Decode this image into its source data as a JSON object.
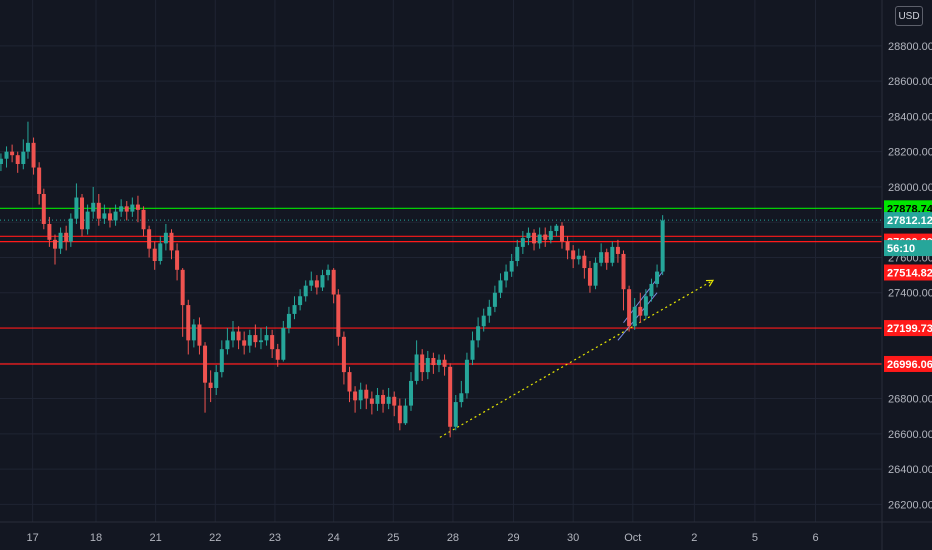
{
  "chart_data": {
    "type": "candlestick",
    "currency": "USD",
    "colors": {
      "background": "#131722",
      "up": "#26a69a",
      "down": "#ef5350",
      "grid": "#1f2433",
      "green_line": "#00e600",
      "red_line": "#ff1a1a",
      "trendline": "#e6e600",
      "channel": "#7b8ce0",
      "current_price": "#26a69a"
    },
    "y_axis": {
      "min": 26100,
      "max": 29060,
      "ticks": [
        "26200.00",
        "26400.00",
        "26600.00",
        "26800.00",
        "27000.00",
        "27200.00",
        "27400.00",
        "27600.00",
        "27800.00",
        "28000.00",
        "28200.00",
        "28400.00",
        "28600.00",
        "28800.00"
      ]
    },
    "x_axis": {
      "labels": [
        {
          "text": "17",
          "x": 0.035
        },
        {
          "text": "18",
          "x": 0.103
        },
        {
          "text": "21",
          "x": 0.167
        },
        {
          "text": "22",
          "x": 0.231
        },
        {
          "text": "23",
          "x": 0.295
        },
        {
          "text": "24",
          "x": 0.358
        },
        {
          "text": "25",
          "x": 0.422
        },
        {
          "text": "28",
          "x": 0.486
        },
        {
          "text": "29",
          "x": 0.551
        },
        {
          "text": "30",
          "x": 0.615
        },
        {
          "text": "Oct",
          "x": 0.679
        },
        {
          "text": "2",
          "x": 0.745
        },
        {
          "text": "5",
          "x": 0.81
        },
        {
          "text": "6",
          "x": 0.875
        }
      ]
    },
    "horizontal_lines": [
      {
        "price": 27878.74,
        "label": "27878.74",
        "color": "#00e600",
        "tag_bg": "#00e600",
        "tag_fg": "#000000"
      },
      {
        "price": 27720,
        "label": "",
        "color": "#ff1a1a"
      },
      {
        "price": 27690.0,
        "label": "27690.00",
        "color": "#ff1a1a",
        "tag_bg": "#ff1a1a",
        "tag_fg": "#ffffff"
      },
      {
        "price": 27199.73,
        "label": "27199.73",
        "color": "#ff1a1a",
        "tag_bg": "#ff1a1a",
        "tag_fg": "#ffffff"
      },
      {
        "price": 26996.06,
        "label": "26996.06",
        "color": "#ff1a1a",
        "tag_bg": "#ff1a1a",
        "tag_fg": "#ffffff"
      }
    ],
    "price_tags": [
      {
        "price": 27812.12,
        "label": "27812.12",
        "bg": "#26a69a",
        "fg": "#ffffff"
      },
      {
        "price": 27514.82,
        "label": "27514.82",
        "bg": "#ff1a1a",
        "fg": "#ffffff"
      }
    ],
    "countdown": "56:10",
    "trendline": {
      "x0": 0.472,
      "y0": 26580,
      "x1": 0.765,
      "y1": 27470
    },
    "candles": [
      [
        0.001,
        28130,
        28160,
        28090,
        28190
      ],
      [
        0.007,
        28160,
        28200,
        28110,
        28230
      ],
      [
        0.013,
        28200,
        28180,
        28140,
        28240
      ],
      [
        0.019,
        28180,
        28130,
        28080,
        28200
      ],
      [
        0.025,
        28130,
        28200,
        28100,
        28270
      ],
      [
        0.03,
        28200,
        28250,
        28160,
        28370
      ],
      [
        0.036,
        28250,
        28110,
        28070,
        28280
      ],
      [
        0.042,
        28110,
        27960,
        27900,
        28140
      ],
      [
        0.047,
        27960,
        27790,
        27760,
        27990
      ],
      [
        0.053,
        27790,
        27700,
        27660,
        27830
      ],
      [
        0.059,
        27700,
        27650,
        27560,
        27730
      ],
      [
        0.065,
        27650,
        27740,
        27620,
        27770
      ],
      [
        0.071,
        27740,
        27690,
        27640,
        27780
      ],
      [
        0.076,
        27690,
        27820,
        27660,
        27850
      ],
      [
        0.082,
        27820,
        27940,
        27790,
        28020
      ],
      [
        0.088,
        27940,
        27760,
        27720,
        27960
      ],
      [
        0.094,
        27760,
        27860,
        27730,
        27900
      ],
      [
        0.1,
        27860,
        27910,
        27820,
        28000
      ],
      [
        0.106,
        27910,
        27820,
        27780,
        27960
      ],
      [
        0.112,
        27820,
        27850,
        27790,
        27900
      ],
      [
        0.118,
        27850,
        27810,
        27770,
        27880
      ],
      [
        0.124,
        27810,
        27860,
        27780,
        27900
      ],
      [
        0.13,
        27860,
        27890,
        27830,
        27930
      ],
      [
        0.136,
        27890,
        27860,
        27810,
        27920
      ],
      [
        0.142,
        27860,
        27900,
        27830,
        27940
      ],
      [
        0.148,
        27900,
        27870,
        27800,
        27950
      ],
      [
        0.154,
        27870,
        27760,
        27720,
        27890
      ],
      [
        0.16,
        27760,
        27650,
        27600,
        27780
      ],
      [
        0.166,
        27650,
        27580,
        27530,
        27690
      ],
      [
        0.172,
        27580,
        27680,
        27560,
        27720
      ],
      [
        0.178,
        27680,
        27740,
        27640,
        27790
      ],
      [
        0.184,
        27740,
        27640,
        27590,
        27760
      ],
      [
        0.19,
        27640,
        27530,
        27470,
        27680
      ],
      [
        0.196,
        27530,
        27330,
        27150,
        27540
      ],
      [
        0.202,
        27330,
        27130,
        27050,
        27360
      ],
      [
        0.208,
        27130,
        27220,
        27090,
        27250
      ],
      [
        0.214,
        27220,
        27100,
        27050,
        27260
      ],
      [
        0.22,
        27100,
        26890,
        26720,
        27120
      ],
      [
        0.226,
        26890,
        26860,
        26780,
        26960
      ],
      [
        0.232,
        26860,
        26950,
        26820,
        26990
      ],
      [
        0.238,
        26950,
        27080,
        26920,
        27130
      ],
      [
        0.244,
        27080,
        27130,
        27050,
        27200
      ],
      [
        0.25,
        27130,
        27180,
        27090,
        27240
      ],
      [
        0.256,
        27180,
        27130,
        27080,
        27210
      ],
      [
        0.262,
        27130,
        27100,
        27050,
        27180
      ],
      [
        0.268,
        27100,
        27160,
        27060,
        27190
      ],
      [
        0.274,
        27160,
        27120,
        27090,
        27220
      ],
      [
        0.28,
        27120,
        27130,
        27080,
        27200
      ],
      [
        0.286,
        27130,
        27160,
        27100,
        27210
      ],
      [
        0.292,
        27160,
        27080,
        27030,
        27190
      ],
      [
        0.298,
        27080,
        27020,
        26980,
        27110
      ],
      [
        0.304,
        27020,
        27200,
        27010,
        27240
      ],
      [
        0.31,
        27200,
        27280,
        27170,
        27320
      ],
      [
        0.316,
        27280,
        27330,
        27250,
        27380
      ],
      [
        0.322,
        27330,
        27380,
        27300,
        27420
      ],
      [
        0.328,
        27380,
        27440,
        27350,
        27470
      ],
      [
        0.334,
        27440,
        27470,
        27410,
        27520
      ],
      [
        0.34,
        27470,
        27430,
        27390,
        27500
      ],
      [
        0.346,
        27430,
        27500,
        27410,
        27530
      ],
      [
        0.352,
        27500,
        27530,
        27470,
        27560
      ],
      [
        0.358,
        27530,
        27390,
        27340,
        27540
      ],
      [
        0.363,
        27390,
        27150,
        27100,
        27420
      ],
      [
        0.369,
        27150,
        26950,
        26880,
        27180
      ],
      [
        0.375,
        26950,
        26840,
        26780,
        26980
      ],
      [
        0.381,
        26840,
        26790,
        26720,
        26870
      ],
      [
        0.387,
        26790,
        26850,
        26740,
        26890
      ],
      [
        0.393,
        26850,
        26800,
        26740,
        26880
      ],
      [
        0.399,
        26800,
        26770,
        26710,
        26840
      ],
      [
        0.405,
        26770,
        26820,
        26730,
        26860
      ],
      [
        0.411,
        26820,
        26770,
        26720,
        26850
      ],
      [
        0.417,
        26770,
        26810,
        26740,
        26860
      ],
      [
        0.423,
        26810,
        26760,
        26700,
        26840
      ],
      [
        0.429,
        26760,
        26660,
        26620,
        26800
      ],
      [
        0.435,
        26660,
        26760,
        26650,
        26800
      ],
      [
        0.441,
        26760,
        26900,
        26730,
        26950
      ],
      [
        0.447,
        26900,
        27050,
        26880,
        27130
      ],
      [
        0.453,
        27050,
        26950,
        26900,
        27080
      ],
      [
        0.459,
        26950,
        27030,
        26910,
        27070
      ],
      [
        0.465,
        27030,
        26990,
        26940,
        27060
      ],
      [
        0.471,
        26990,
        27020,
        26950,
        27050
      ],
      [
        0.477,
        27020,
        26980,
        26930,
        27050
      ],
      [
        0.483,
        26980,
        26640,
        26580,
        27000
      ],
      [
        0.489,
        26640,
        26780,
        26620,
        26820
      ],
      [
        0.495,
        26780,
        26830,
        26750,
        26900
      ],
      [
        0.501,
        26830,
        27020,
        26800,
        27060
      ],
      [
        0.507,
        27020,
        27130,
        26990,
        27180
      ],
      [
        0.513,
        27130,
        27210,
        27090,
        27260
      ],
      [
        0.519,
        27210,
        27270,
        27180,
        27310
      ],
      [
        0.525,
        27270,
        27320,
        27230,
        27360
      ],
      [
        0.531,
        27320,
        27400,
        27290,
        27440
      ],
      [
        0.537,
        27400,
        27470,
        27370,
        27510
      ],
      [
        0.543,
        27470,
        27520,
        27430,
        27560
      ],
      [
        0.549,
        27520,
        27580,
        27490,
        27620
      ],
      [
        0.555,
        27580,
        27660,
        27550,
        27700
      ],
      [
        0.561,
        27660,
        27710,
        27620,
        27750
      ],
      [
        0.567,
        27710,
        27740,
        27670,
        27770
      ],
      [
        0.573,
        27740,
        27680,
        27640,
        27760
      ],
      [
        0.579,
        27680,
        27730,
        27650,
        27770
      ],
      [
        0.585,
        27730,
        27700,
        27660,
        27770
      ],
      [
        0.591,
        27700,
        27750,
        27680,
        27780
      ],
      [
        0.597,
        27750,
        27780,
        27720,
        27790
      ],
      [
        0.603,
        27780,
        27690,
        27650,
        27800
      ],
      [
        0.609,
        27690,
        27640,
        27590,
        27720
      ],
      [
        0.615,
        27640,
        27590,
        27540,
        27670
      ],
      [
        0.621,
        27590,
        27610,
        27560,
        27650
      ],
      [
        0.627,
        27610,
        27540,
        27480,
        27640
      ],
      [
        0.633,
        27540,
        27440,
        27400,
        27580
      ],
      [
        0.639,
        27440,
        27570,
        27420,
        27600
      ],
      [
        0.645,
        27570,
        27630,
        27550,
        27680
      ],
      [
        0.651,
        27630,
        27570,
        27530,
        27650
      ],
      [
        0.657,
        27570,
        27660,
        27550,
        27690
      ],
      [
        0.663,
        27660,
        27620,
        27570,
        27700
      ],
      [
        0.669,
        27620,
        27420,
        27300,
        27640
      ],
      [
        0.675,
        27420,
        27210,
        27180,
        27440
      ],
      [
        0.681,
        27210,
        27320,
        27190,
        27370
      ],
      [
        0.687,
        27320,
        27270,
        27230,
        27400
      ],
      [
        0.693,
        27270,
        27380,
        27250,
        27420
      ],
      [
        0.699,
        27380,
        27450,
        27350,
        27480
      ],
      [
        0.705,
        27450,
        27520,
        27430,
        27560
      ],
      [
        0.711,
        27520,
        27810,
        27500,
        27840
      ]
    ]
  }
}
